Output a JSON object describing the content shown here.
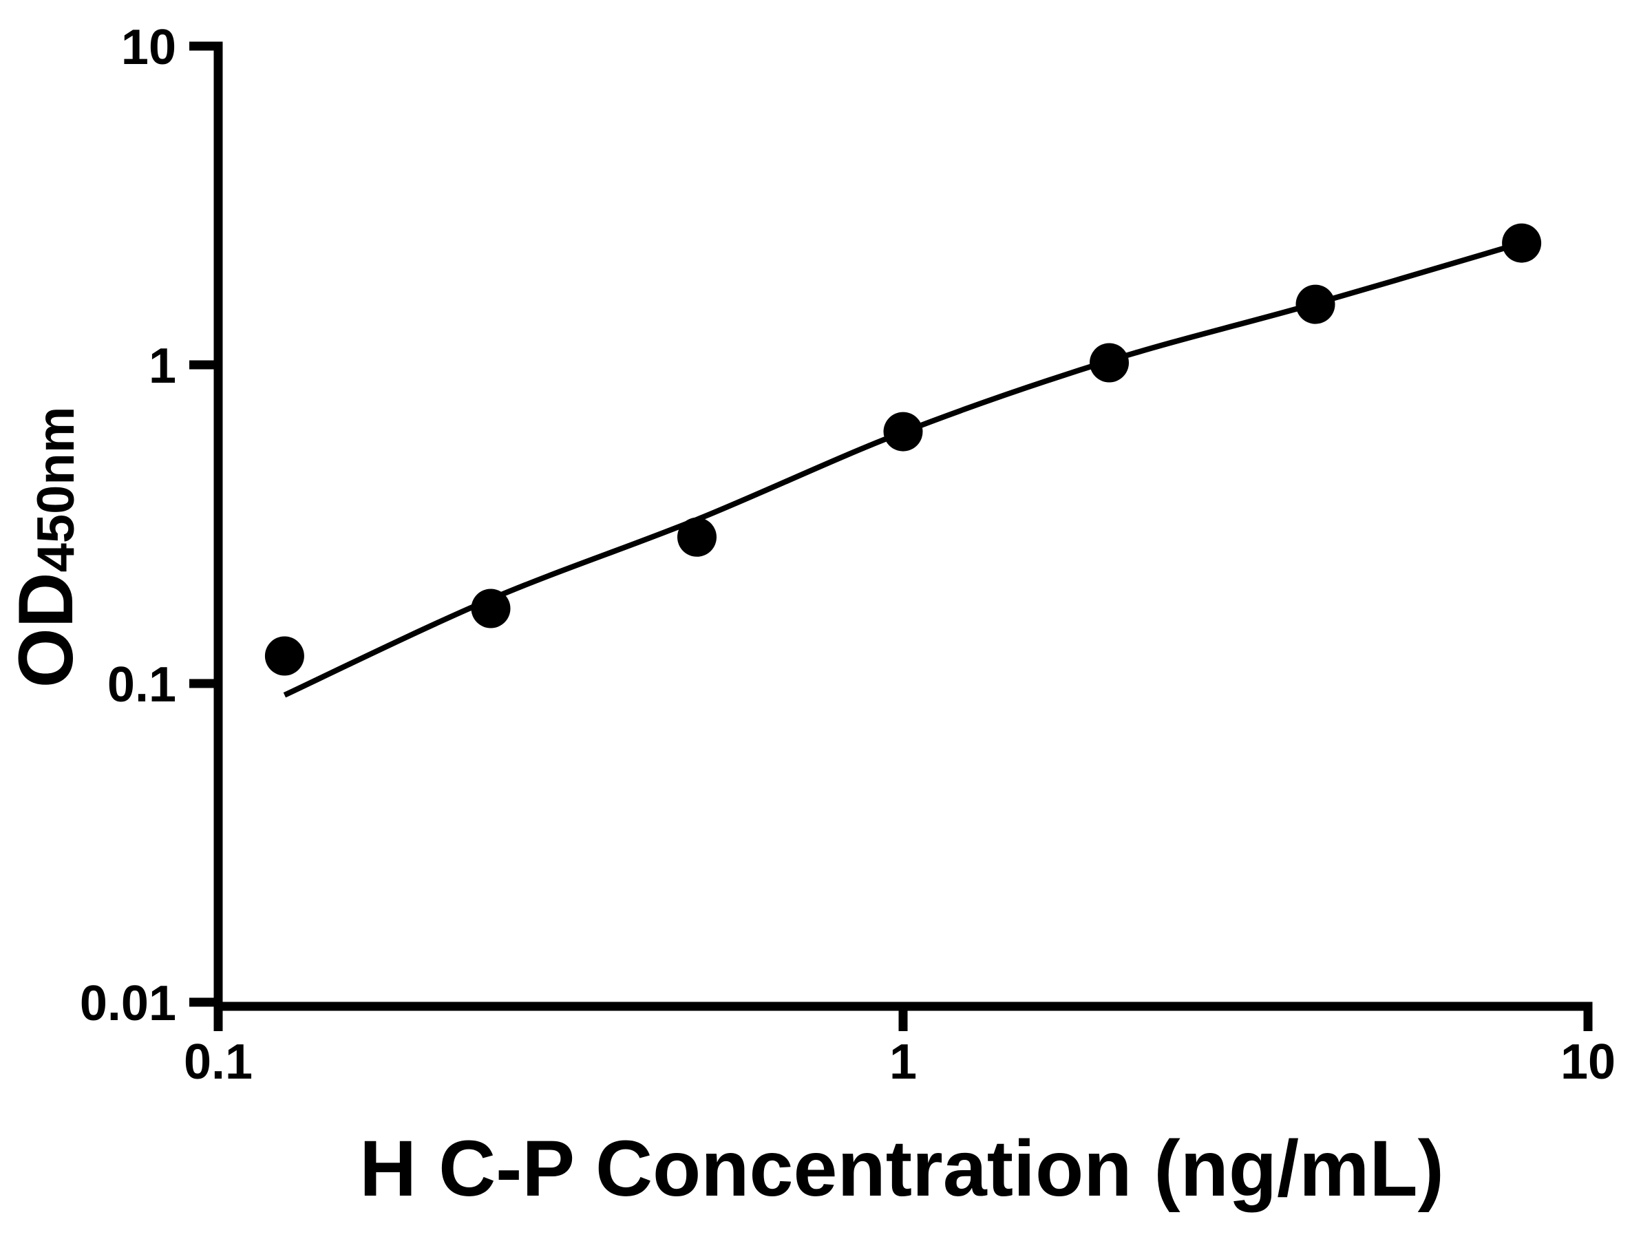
{
  "chart_data": {
    "type": "scatter",
    "title": "",
    "xlabel": "H C-P Concentration (ng/mL)",
    "ylabel_main": "OD",
    "ylabel_subscript": "450nm",
    "x_scale": "log",
    "y_scale": "log",
    "xlim": [
      0.1,
      10
    ],
    "ylim": [
      0.01,
      10
    ],
    "grid": false,
    "legend": "none",
    "x_ticks": {
      "values": [
        0.1,
        1,
        10
      ],
      "labels": [
        "0.1",
        "1",
        "10"
      ]
    },
    "y_ticks": {
      "values": [
        10,
        1,
        0.1,
        0.01
      ],
      "labels": [
        "10",
        "1",
        "0.1",
        "0.01"
      ]
    },
    "series": [
      {
        "name": "standard-curve-points",
        "type": "scatter",
        "marker": "filled-circle",
        "x": [
          0.125,
          0.25,
          0.5,
          1,
          2,
          4,
          8
        ],
        "y": [
          0.122,
          0.172,
          0.288,
          0.617,
          1.015,
          1.548,
          2.41
        ]
      },
      {
        "name": "fit-curve",
        "type": "line",
        "x": [
          0.125,
          0.25,
          0.5,
          1,
          2,
          4,
          8
        ],
        "y": [
          0.092,
          0.184,
          0.327,
          0.615,
          1.03,
          1.557,
          2.41
        ]
      }
    ],
    "colors": {
      "marker": "#000000",
      "curve": "#000000",
      "axis": "#000000",
      "background": "#ffffff"
    }
  }
}
